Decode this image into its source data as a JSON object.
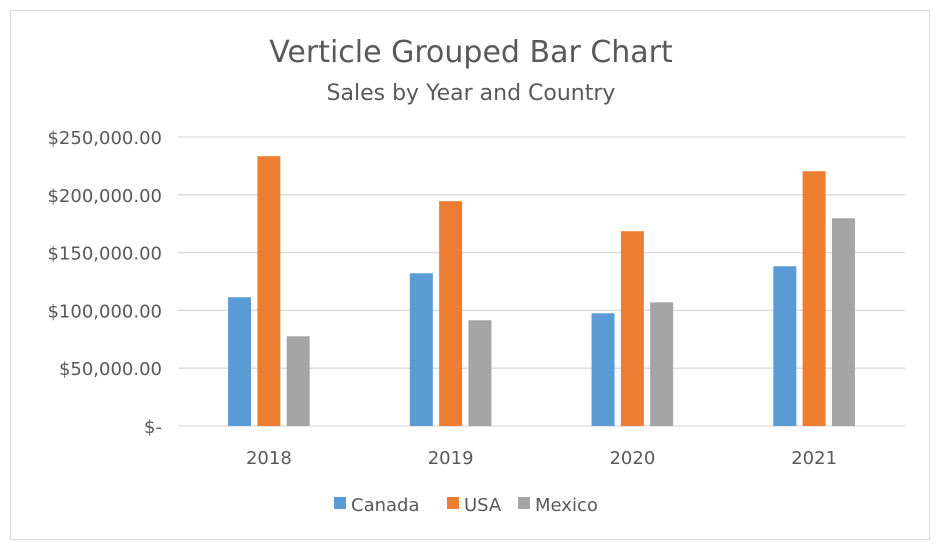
{
  "chart_data": {
    "type": "bar",
    "title": "Verticle Grouped Bar Chart",
    "subtitle": "Sales by Year and Country",
    "categories": [
      "2018",
      "2019",
      "2020",
      "2021"
    ],
    "series": [
      {
        "name": "Canada",
        "color": "#5b9bd5",
        "values": [
          111400,
          132100,
          97500,
          138200
        ]
      },
      {
        "name": "USA",
        "color": "#ed7d31",
        "values": [
          233400,
          194500,
          168500,
          220400
        ]
      },
      {
        "name": "Mexico",
        "color": "#a5a5a5",
        "values": [
          77600,
          91500,
          107000,
          179700
        ]
      }
    ],
    "ylim": [
      0,
      250000
    ],
    "yticks": [
      0,
      50000,
      100000,
      150000,
      200000,
      250000
    ],
    "ytick_labels": [
      "$-",
      "$50,000.00",
      "$100,000.00",
      "$150,000.00",
      "$200,000.00",
      "$250,000.00"
    ],
    "grid": true,
    "legend": "bottom",
    "xlabel": "",
    "ylabel": ""
  }
}
